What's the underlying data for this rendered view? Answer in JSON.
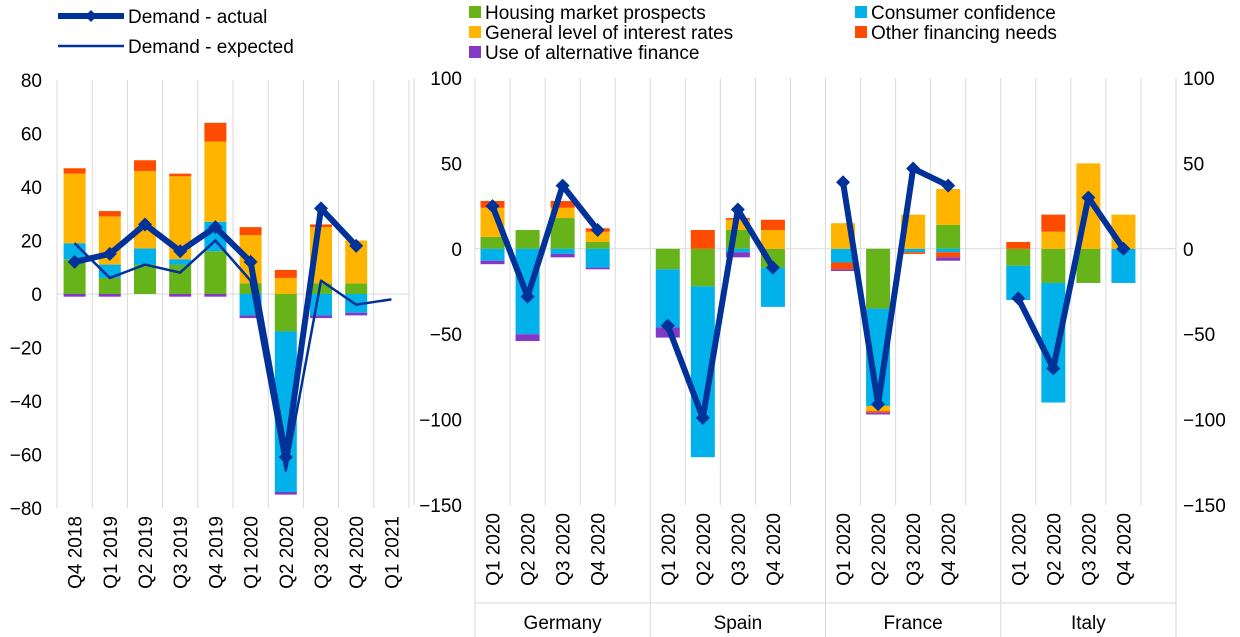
{
  "colors": {
    "housing": "#66B31A",
    "consumer": "#00B1EA",
    "interest": "#FFB400",
    "other": "#FF4B00",
    "alt_finance": "#8139C6",
    "line": "#003299",
    "grid": "#D9D9D9",
    "axis": "#D9D9D9"
  },
  "legend": {
    "actual": "Demand - actual",
    "expected": "Demand - expected",
    "housing": "Housing market prospects",
    "interest": "General level of interest rates",
    "alt_finance": "Use of alternative finance",
    "consumer": "Consumer confidence",
    "other": "Other financing needs"
  },
  "chart_data": [
    {
      "type": "bar",
      "stacked": true,
      "title": "",
      "categories": [
        "Q4 2018",
        "Q1 2019",
        "Q2 2019",
        "Q3 2019",
        "Q4 2019",
        "Q1 2020",
        "Q2 2020",
        "Q3 2020",
        "Q4 2020",
        "Q1 2021"
      ],
      "ylim": [
        -80,
        80
      ],
      "yticks": [
        -80,
        -60,
        -40,
        -20,
        0,
        20,
        40,
        60,
        80
      ],
      "series": [
        {
          "name": "Housing market prospects",
          "key": "housing",
          "values": [
            13,
            6,
            11,
            11,
            16,
            4,
            -14,
            4,
            4,
            null
          ]
        },
        {
          "name": "Consumer confidence",
          "key": "consumer",
          "values": [
            6,
            5,
            6,
            2,
            11,
            -8,
            -60,
            -8,
            -7,
            null
          ]
        },
        {
          "name": "General level of interest rates",
          "key": "interest",
          "values": [
            26,
            18,
            29,
            31,
            30,
            18,
            6,
            21,
            16,
            null
          ]
        },
        {
          "name": "Other financing needs",
          "key": "other",
          "values": [
            2,
            2,
            4,
            1,
            7,
            3,
            3,
            1,
            0,
            null
          ]
        },
        {
          "name": "Use of alternative finance",
          "key": "alt_finance",
          "values": [
            -1,
            -1,
            0,
            -1,
            -1,
            -1,
            -1,
            -1,
            -1,
            null
          ]
        }
      ],
      "lines": [
        {
          "name": "Demand - actual",
          "key": "actual",
          "values": [
            12,
            15,
            26,
            16,
            25,
            12,
            -61,
            32,
            18,
            null
          ]
        },
        {
          "name": "Demand - expected",
          "key": "expected",
          "values": [
            19,
            6,
            11,
            8,
            20,
            5,
            -66,
            5,
            -4,
            -2
          ]
        }
      ]
    },
    {
      "type": "bar",
      "stacked": true,
      "title": "",
      "ylim": [
        -150,
        100
      ],
      "yticks": [
        -150,
        -100,
        -50,
        0,
        50,
        100
      ],
      "groups": [
        "Germany",
        "Spain",
        "France",
        "Italy"
      ],
      "categories": [
        "Q1 2020",
        "Q2 2020",
        "Q3 2020",
        "Q4 2020"
      ],
      "series": [
        {
          "name": "Housing market prospects",
          "key": "housing",
          "values": [
            [
              7,
              11,
              18,
              4
            ],
            [
              -12,
              -22,
              11,
              -11
            ],
            [
              0,
              -35,
              0,
              14
            ],
            [
              -10,
              -20,
              -20,
              0
            ]
          ]
        },
        {
          "name": "Consumer confidence",
          "key": "consumer",
          "values": [
            [
              -7,
              -50,
              -3,
              -11
            ],
            [
              -34,
              -100,
              -2,
              -23
            ],
            [
              -8,
              -57,
              -2,
              -2
            ],
            [
              -20,
              -70,
              0,
              -20
            ]
          ]
        },
        {
          "name": "General level of interest rates",
          "key": "interest",
          "values": [
            [
              17,
              0,
              6,
              6
            ],
            [
              0,
              0,
              6,
              11
            ],
            [
              15,
              -3,
              20,
              21
            ],
            [
              0,
              10,
              50,
              20
            ]
          ]
        },
        {
          "name": "Other financing needs",
          "key": "other",
          "values": [
            [
              4,
              0,
              4,
              2
            ],
            [
              0,
              11,
              1,
              6
            ],
            [
              -4,
              -1,
              -1,
              -3
            ],
            [
              4,
              10,
              0,
              0
            ]
          ]
        },
        {
          "name": "Use of alternative finance",
          "key": "alt_finance",
          "values": [
            [
              -2,
              -4,
              -2,
              -1
            ],
            [
              -6,
              0,
              -3,
              0
            ],
            [
              -1,
              -1,
              0,
              -2
            ],
            [
              0,
              0,
              0,
              0
            ]
          ]
        }
      ],
      "lines": [
        {
          "name": "Demand - actual",
          "key": "actual",
          "values": [
            [
              25,
              -28,
              37,
              11
            ],
            [
              -45,
              -99,
              23,
              -11
            ],
            [
              39,
              -91,
              47,
              37
            ],
            [
              -29,
              -70,
              30,
              0
            ]
          ]
        }
      ]
    }
  ]
}
